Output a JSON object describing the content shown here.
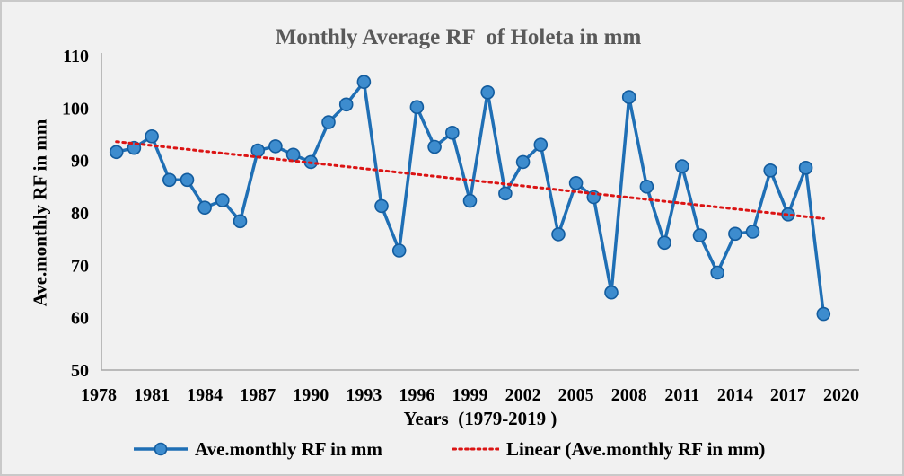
{
  "frame": {
    "background": "#F1F1F1",
    "border_color": "#C9C9C9"
  },
  "chart_data": {
    "type": "line",
    "title": "Monthly Average RF  of Holeta in mm",
    "title_color": "#595959",
    "xlabel": "Years  (1979-2019 )",
    "ylabel": "Ave.monthly RF in mm",
    "x_tick_labels": [
      "1978",
      "1981",
      "1984",
      "1987",
      "1990",
      "1993",
      "1996",
      "1999",
      "2002",
      "2005",
      "2008",
      "2011",
      "2014",
      "2017",
      "2020"
    ],
    "x_tick_years": [
      1978,
      1981,
      1984,
      1987,
      1990,
      1993,
      1996,
      1999,
      2002,
      2005,
      2008,
      2011,
      2014,
      2017,
      2020
    ],
    "y_ticks": [
      50,
      60,
      70,
      80,
      90,
      100,
      110
    ],
    "ylim": [
      50,
      110
    ],
    "xlim": [
      1978,
      2020
    ],
    "grid": false,
    "legend_position": "bottom",
    "axis_color": "#A8A8A8",
    "tick_text_color": "#000000",
    "series": [
      {
        "name": "Ave.monthly RF in mm",
        "type": "line_markers",
        "line_color": "#1F6FB5",
        "marker_fill": "#3D8CCE",
        "marker_stroke": "#135C9E",
        "x": [
          1979,
          1980,
          1981,
          1982,
          1983,
          1984,
          1985,
          1986,
          1987,
          1988,
          1989,
          1990,
          1991,
          1992,
          1993,
          1994,
          1995,
          1996,
          1997,
          1998,
          1999,
          2000,
          2001,
          2002,
          2003,
          2004,
          2005,
          2006,
          2007,
          2008,
          2009,
          2010,
          2011,
          2012,
          2013,
          2014,
          2015,
          2016,
          2017,
          2018,
          2019
        ],
        "values": [
          91.6,
          92.4,
          94.6,
          86.3,
          86.3,
          81.0,
          82.4,
          78.4,
          91.9,
          92.7,
          91.1,
          89.7,
          97.3,
          100.7,
          105.0,
          81.3,
          72.8,
          100.2,
          92.6,
          95.3,
          82.3,
          103.0,
          83.7,
          89.7,
          93.0,
          75.9,
          85.7,
          83.0,
          64.8,
          102.1,
          85.0,
          74.3,
          88.9,
          75.7,
          68.6,
          76.0,
          76.4,
          88.1,
          79.7,
          88.6,
          60.7
        ]
      },
      {
        "name": "Linear (Ave.monthly RF in mm)",
        "type": "linear_trend",
        "line_color": "#DB1414",
        "style": "dotted",
        "x": [
          1979,
          2019
        ],
        "values": [
          93.6,
          78.9
        ]
      }
    ]
  }
}
